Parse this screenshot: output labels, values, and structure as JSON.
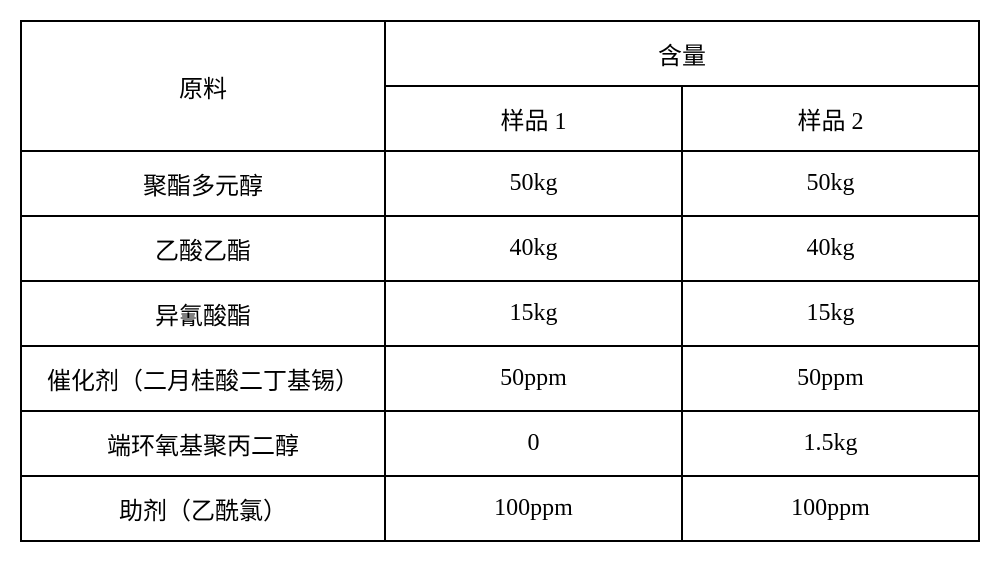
{
  "table": {
    "headers": {
      "material": "原料",
      "content": "含量",
      "sample1": "样品 1",
      "sample2": "样品 2"
    },
    "rows": [
      {
        "material": "聚酯多元醇",
        "sample1": "50kg",
        "sample2": "50kg"
      },
      {
        "material": "乙酸乙酯",
        "sample1": "40kg",
        "sample2": "40kg"
      },
      {
        "material": "异氰酸酯",
        "sample1": "15kg",
        "sample2": "15kg"
      },
      {
        "material": "催化剂（二月桂酸二丁基锡）",
        "sample1": "50ppm",
        "sample2": "50ppm"
      },
      {
        "material": "端环氧基聚丙二醇",
        "sample1": "0",
        "sample2": "1.5kg"
      },
      {
        "material": "助剂（乙酰氯）",
        "sample1": "100ppm",
        "sample2": "100ppm"
      }
    ],
    "styling": {
      "border_color": "#000000",
      "background_color": "#ffffff",
      "font_size": 24,
      "cell_padding": 14,
      "text_align": "center",
      "border_width": 2
    }
  }
}
